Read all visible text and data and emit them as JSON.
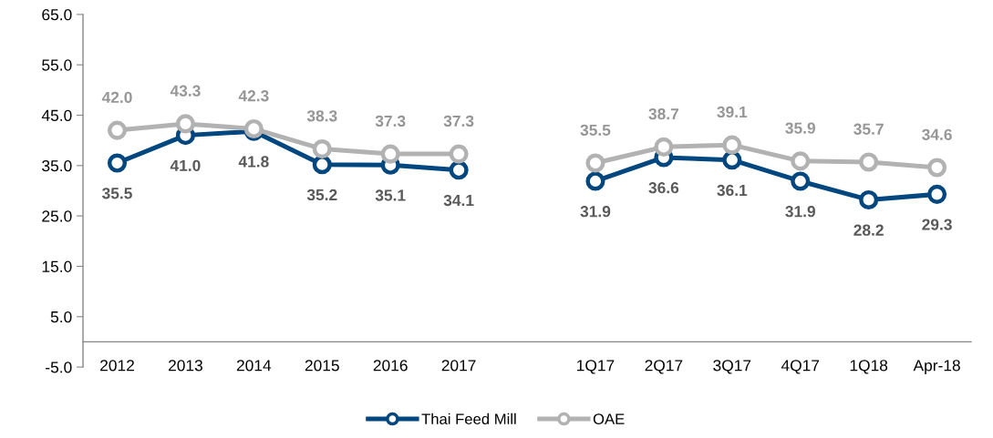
{
  "chart_data": {
    "type": "line",
    "categories": [
      "2012",
      "2013",
      "2014",
      "2015",
      "2016",
      "2017",
      null,
      "1Q17",
      "2Q17",
      "3Q17",
      "4Q17",
      "1Q18",
      "Apr-18"
    ],
    "series": [
      {
        "name": "Thai Feed Mill",
        "color": "#00467f",
        "values": [
          35.5,
          41.0,
          41.8,
          35.2,
          35.1,
          34.1,
          null,
          31.9,
          36.6,
          36.1,
          31.9,
          28.2,
          29.3
        ],
        "value_labels": [
          "35.5",
          "41.0",
          "41.8",
          "35.2",
          "35.1",
          "34.1",
          null,
          "31.9",
          "36.6",
          "36.1",
          "31.9",
          "28.2",
          "29.3"
        ]
      },
      {
        "name": "OAE",
        "color": "#b2b2b2",
        "values": [
          42.0,
          43.3,
          42.3,
          38.3,
          37.3,
          37.3,
          null,
          35.5,
          38.7,
          39.1,
          35.9,
          35.7,
          34.6
        ],
        "value_labels": [
          "42.0",
          "43.3",
          "42.3",
          "38.3",
          "37.3",
          "37.3",
          null,
          "35.5",
          "38.7",
          "39.1",
          "35.9",
          "35.7",
          "34.6"
        ]
      }
    ],
    "ylim": [
      -5,
      65
    ],
    "yticks": [
      {
        "value": -5,
        "label": "-5.0"
      },
      {
        "value": 5,
        "label": "5.0"
      },
      {
        "value": 15,
        "label": "15.0"
      },
      {
        "value": 25,
        "label": "25.0"
      },
      {
        "value": 35,
        "label": "35.0"
      },
      {
        "value": 45,
        "label": "45.0"
      },
      {
        "value": 55,
        "label": "55.0"
      },
      {
        "value": 65,
        "label": "65.0"
      }
    ],
    "grid": false,
    "legend": "bottom",
    "marker": "circle",
    "line_style": "solid"
  }
}
